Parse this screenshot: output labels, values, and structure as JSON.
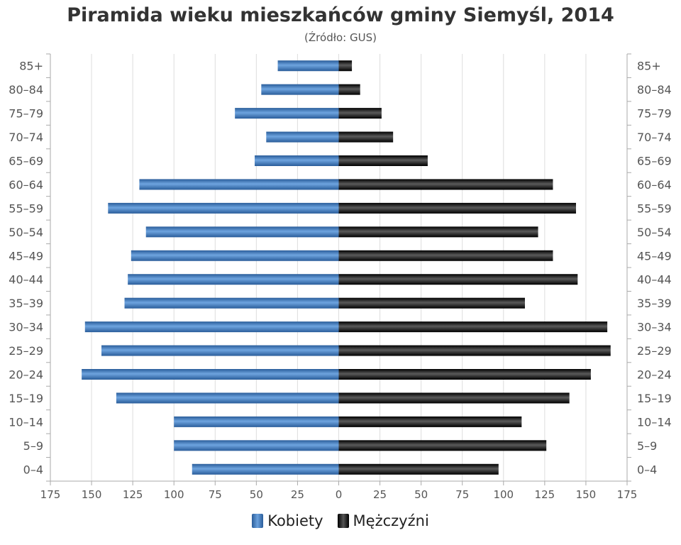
{
  "chart_data": {
    "type": "bar",
    "title": "Piramida wieku mieszkańców gminy Siemyśl, 2014",
    "subtitle": "(Źródło: GUS)",
    "categories": [
      "0–4",
      "5–9",
      "10–14",
      "15–19",
      "20–24",
      "25–29",
      "30–34",
      "35–39",
      "40–44",
      "45–49",
      "50–54",
      "55–59",
      "60–64",
      "65–69",
      "70–74",
      "75–79",
      "80–84",
      "85+"
    ],
    "series": [
      {
        "name": "Kobiety",
        "color": "#3d7bc1",
        "values": [
          89,
          100,
          100,
          135,
          156,
          144,
          154,
          130,
          128,
          126,
          117,
          140,
          121,
          51,
          44,
          63,
          47,
          37
        ]
      },
      {
        "name": "Mężczyźni",
        "color": "#111111",
        "values": [
          97,
          126,
          111,
          140,
          153,
          165,
          163,
          113,
          145,
          130,
          121,
          144,
          130,
          54,
          33,
          26,
          13,
          8
        ]
      }
    ],
    "xlim": [
      -175,
      175
    ],
    "xticks": [
      175,
      150,
      125,
      100,
      75,
      50,
      25,
      0,
      25,
      50,
      75,
      100,
      125,
      150,
      175
    ],
    "grid": true,
    "legend_position": "bottom"
  }
}
